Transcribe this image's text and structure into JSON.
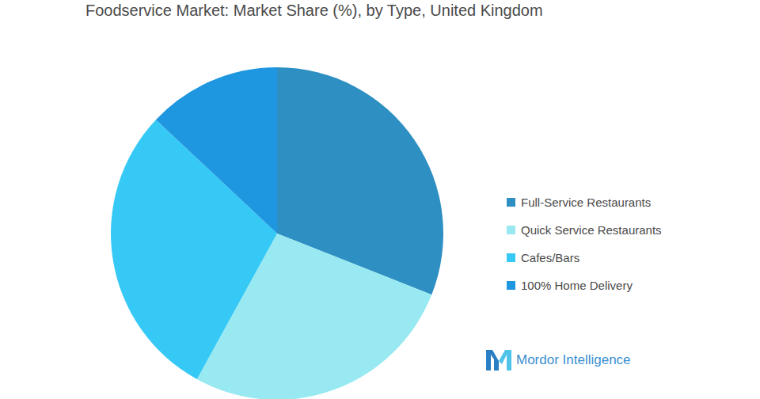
{
  "chart_data": {
    "type": "pie",
    "title": "Foodservice Market: Market Share (%), by Type, United Kingdom",
    "categories": [
      "Full-Service Restaurants",
      "Quick Service Restaurants",
      "Cafes/Bars",
      "100% Home Delivery"
    ],
    "values": [
      31,
      27,
      29,
      13
    ],
    "colors": [
      "#2e8fc2",
      "#98e9f1",
      "#36c9f5",
      "#1f96e0"
    ],
    "legend": "right",
    "annotations": [
      "Mordor Intelligence"
    ]
  }
}
